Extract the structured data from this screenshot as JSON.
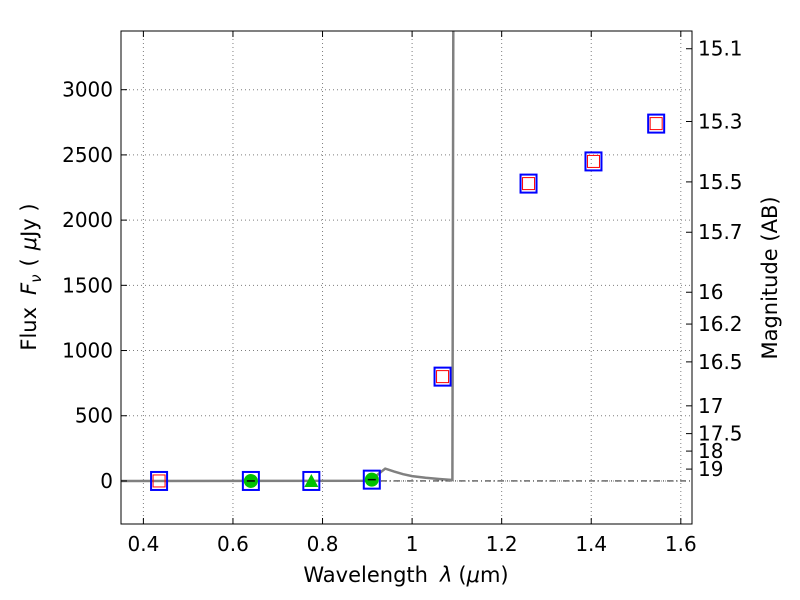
{
  "chart_data": {
    "type": "scatter",
    "xlabel_text": "Wavelength",
    "xlabel_symbol": "λ",
    "xlabel_unit_open": "(",
    "xlabel_unit_mu": "μ",
    "xlabel_unit_rest": "m)",
    "ylabel_text": "Flux",
    "ylabel_symbol": "F",
    "ylabel_sub": "ν",
    "ylabel_unit_open": "(",
    "ylabel_unit_mu": "μ",
    "ylabel_unit_rest": "Jy )",
    "y2label": "Magnitude (AB)",
    "xlim": [
      0.35,
      1.625
    ],
    "ylim": [
      -330,
      3450
    ],
    "x_ticks": [
      0.4,
      0.6,
      0.8,
      1.0,
      1.2,
      1.4,
      1.6
    ],
    "x_tick_labels": [
      "0.4",
      "0.6",
      "0.8",
      "1",
      "1.2",
      "1.4",
      "1.6"
    ],
    "y_ticks": [
      0,
      500,
      1000,
      1500,
      2000,
      2500,
      3000
    ],
    "y_tick_labels": [
      "0",
      "500",
      "1000",
      "1500",
      "2000",
      "2500",
      "3000"
    ],
    "mag_ticks": [
      {
        "label": "15.1",
        "flux": 3314
      },
      {
        "label": "15.3",
        "flux": 2756
      },
      {
        "label": "15.5",
        "flux": 2293
      },
      {
        "label": "15.7",
        "flux": 1907
      },
      {
        "label": "16",
        "flux": 1447
      },
      {
        "label": "16.2",
        "flux": 1203
      },
      {
        "label": "16.5",
        "flux": 913
      },
      {
        "label": "17",
        "flux": 576
      },
      {
        "label": "17.5",
        "flux": 363
      },
      {
        "label": "18",
        "flux": 229
      },
      {
        "label": "19",
        "flux": 91
      }
    ],
    "grid": true,
    "zero_line": true,
    "model_sed": [
      {
        "x": 0.35,
        "y": 0
      },
      {
        "x": 0.9,
        "y": 2
      },
      {
        "x": 0.92,
        "y": 40
      },
      {
        "x": 0.94,
        "y": 95
      },
      {
        "x": 0.96,
        "y": 72
      },
      {
        "x": 0.98,
        "y": 52
      },
      {
        "x": 1.0,
        "y": 37
      },
      {
        "x": 1.03,
        "y": 25
      },
      {
        "x": 1.06,
        "y": 15
      },
      {
        "x": 1.09,
        "y": 7
      },
      {
        "x": 1.092,
        "y": 3450
      }
    ],
    "model_points": [
      {
        "x": 0.435,
        "y": 0
      },
      {
        "x": 0.64,
        "y": 0
      },
      {
        "x": 0.775,
        "y": 0
      },
      {
        "x": 0.91,
        "y": 10
      },
      {
        "x": 1.068,
        "y": 800
      },
      {
        "x": 1.26,
        "y": 2280
      },
      {
        "x": 1.405,
        "y": 2450
      },
      {
        "x": 1.545,
        "y": 2740
      }
    ],
    "observed_points": [
      {
        "x": 0.64,
        "y": 0,
        "marker": "circle"
      },
      {
        "x": 0.775,
        "y": 0,
        "marker": "triangle"
      },
      {
        "x": 0.91,
        "y": 10,
        "marker": "circle"
      }
    ],
    "upper_limits": [
      {
        "x": 0.435,
        "y": 0
      },
      {
        "x": 1.068,
        "y": 800
      },
      {
        "x": 1.26,
        "y": 2280
      },
      {
        "x": 1.405,
        "y": 2450
      },
      {
        "x": 1.545,
        "y": 2740
      }
    ],
    "colors": {
      "sed_line": "#808080",
      "model_square": "#0000ff",
      "limit_square": "#ff0000",
      "observed": "#00c000",
      "grid": "#7f7f7f"
    }
  }
}
